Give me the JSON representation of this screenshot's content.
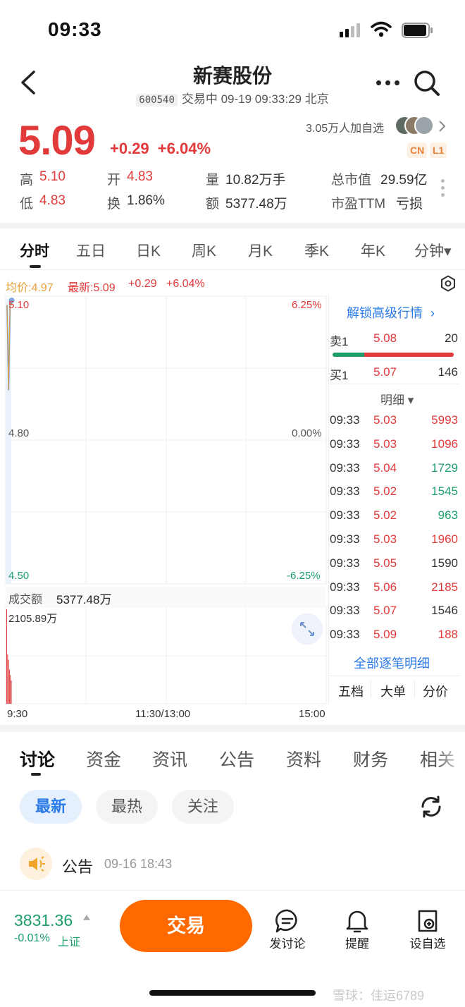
{
  "status_bar": {
    "time": "09:33"
  },
  "header": {
    "title": "新赛股份",
    "code": "600540",
    "status_line": "交易中 09-19 09:33:29 北京"
  },
  "quote": {
    "price": "5.09",
    "change": "+0.29",
    "change_pct": "+6.04%",
    "followers": "3.05万人加自选",
    "tag_cn": "CN",
    "tag_l1": "L1",
    "stats": {
      "high_label": "高",
      "high": "5.10",
      "low_label": "低",
      "low": "4.83",
      "open_label": "开",
      "open": "4.83",
      "turnover_label": "换",
      "turnover": "1.86%",
      "volume_label": "量",
      "volume": "10.82万手",
      "amount_label": "额",
      "amount": "5377.48万",
      "mktcap_label": "总市值",
      "mktcap": "29.59亿",
      "pe_label": "市盈TTM",
      "pe": "亏损"
    }
  },
  "chart_tabs": [
    "分时",
    "五日",
    "日K",
    "周K",
    "月K",
    "季K",
    "年K",
    "分钟▾"
  ],
  "chart_legend": {
    "avg": "均价:4.97",
    "latest": "最新:5.09",
    "chg": "+0.29",
    "pct": "+6.04%"
  },
  "chart_axes": {
    "top_price": "5.10",
    "mid_price": "4.80",
    "bottom_price": "4.50",
    "top_pct": "6.25%",
    "mid_pct": "0.00%",
    "bottom_pct": "-6.25%",
    "volume_label": "成交额",
    "volume_value": "5377.48万",
    "volume_max": "2105.89万",
    "time_start": "9:30",
    "time_mid": "11:30/13:00",
    "time_end": "15:00"
  },
  "chart_data": {
    "type": "line",
    "series": [
      {
        "values": [
          5.09,
          4.91,
          5.1,
          5.09
        ]
      }
    ],
    "ylim": [
      4.5,
      5.1
    ],
    "volume_values": [
      2105.89,
      1100,
      980,
      760,
      640,
      520
    ]
  },
  "order_book": {
    "unlock_label": "解锁高级行情",
    "sell1_label": "卖1",
    "sell1_price": "5.08",
    "sell1_vol": "20",
    "buy1_label": "买1",
    "buy1_price": "5.07",
    "buy1_vol": "146",
    "detail_label": "明细 ▾",
    "ticks": [
      {
        "time": "09:33",
        "price": "5.03",
        "vol": "5993",
        "dir": "red"
      },
      {
        "time": "09:33",
        "price": "5.03",
        "vol": "1096",
        "dir": "red"
      },
      {
        "time": "09:33",
        "price": "5.04",
        "vol": "1729",
        "dir": "green"
      },
      {
        "time": "09:33",
        "price": "5.02",
        "vol": "1545",
        "dir": "green"
      },
      {
        "time": "09:33",
        "price": "5.02",
        "vol": "963",
        "dir": "green"
      },
      {
        "time": "09:33",
        "price": "5.03",
        "vol": "1960",
        "dir": "red"
      },
      {
        "time": "09:33",
        "price": "5.05",
        "vol": "1590",
        "dir": "dark"
      },
      {
        "time": "09:33",
        "price": "5.06",
        "vol": "2185",
        "dir": "red"
      },
      {
        "time": "09:33",
        "price": "5.07",
        "vol": "1546",
        "dir": "dark"
      },
      {
        "time": "09:33",
        "price": "5.09",
        "vol": "188",
        "dir": "red"
      }
    ],
    "all_ticks_link": "全部逐笔明细",
    "sub_tabs": [
      "五档",
      "大单",
      "分价"
    ]
  },
  "bottom_tabs": [
    "讨论",
    "资金",
    "资讯",
    "公告",
    "资料",
    "财务",
    "相关"
  ],
  "filter_pills": [
    "最新",
    "最热",
    "关注"
  ],
  "announcement": {
    "label": "公告",
    "time": "09-16 18:43"
  },
  "bottom_bar": {
    "index_value": "3831.36",
    "index_change": "-0.01%",
    "index_name": "上证",
    "trade_button": "交易",
    "post_label": "发讨论",
    "alert_label": "提醒",
    "watch_label": "设自选"
  },
  "watermark": "雪球：佳运6789",
  "colors": {
    "up": "#e23a3a",
    "down": "#1c9e6b",
    "accent": "#ff6a00",
    "link": "#2b7be8"
  }
}
